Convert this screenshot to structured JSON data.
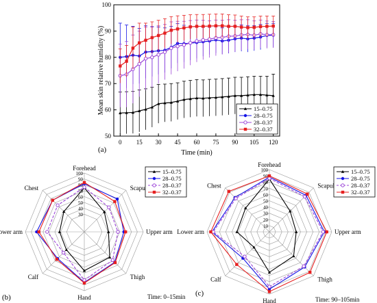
{
  "chart_data": [
    {
      "type": "line",
      "panel_label": "(a)",
      "xlabel": "Time (min)",
      "ylabel": "Mean skin relative humidity (%)",
      "xlim": [
        -5,
        125
      ],
      "ylim": [
        50,
        100
      ],
      "x_ticks": [
        0,
        15,
        30,
        45,
        60,
        75,
        90,
        105,
        120
      ],
      "y_ticks": [
        50,
        60,
        70,
        80,
        90,
        100
      ],
      "legend_position": "bottom-right",
      "grid": false,
      "x": [
        0,
        5,
        10,
        15,
        20,
        25,
        30,
        35,
        40,
        45,
        50,
        55,
        60,
        65,
        70,
        75,
        80,
        85,
        90,
        95,
        100,
        105,
        110,
        115,
        120
      ],
      "series": [
        {
          "name": "15–0.75",
          "color": "#000000",
          "marker": "triangle",
          "values": [
            58.8,
            58.9,
            59.0,
            59.6,
            60.2,
            61.0,
            62.3,
            62.6,
            62.8,
            63.3,
            63.9,
            64.2,
            64.5,
            64.4,
            64.6,
            64.7,
            64.9,
            65.1,
            65.4,
            65.4,
            65.6,
            65.8,
            65.8,
            65.6,
            65.4
          ],
          "errors": [
            8.0,
            8.0,
            8.0,
            8.0,
            7.8,
            7.6,
            7.4,
            7.2,
            7.2,
            7.0,
            7.0,
            7.0,
            7.0,
            7.0,
            7.0,
            7.0,
            7.0,
            7.0,
            7.0,
            7.0,
            7.0,
            7.0,
            7.0,
            7.2,
            8.2
          ]
        },
        {
          "name": "28–0.75",
          "color": "#1414e6",
          "marker": "circle",
          "values": [
            80.0,
            80.3,
            80.8,
            80.5,
            82.0,
            82.2,
            82.5,
            82.7,
            83.8,
            85.3,
            85.2,
            85.4,
            85.6,
            85.9,
            86.2,
            86.6,
            86.2,
            86.5,
            87.0,
            87.3,
            87.0,
            87.3,
            87.7,
            88.3,
            88.4
          ],
          "errors": [
            13.0,
            12.0,
            11.0,
            10.5,
            10.0,
            9.5,
            9.0,
            8.5,
            8.0,
            7.5,
            7.0,
            6.5,
            6.0,
            5.5,
            5.2,
            5.0,
            5.0,
            5.0,
            5.0,
            5.0,
            5.0,
            4.8,
            4.8,
            4.6,
            4.5
          ]
        },
        {
          "name": "28–0.37",
          "color": "#9c46d8",
          "marker": "circle-open",
          "values": [
            73.0,
            73.5,
            75.5,
            77.5,
            79.5,
            80.0,
            81.0,
            82.0,
            83.5,
            84.2,
            84.7,
            85.5,
            86.2,
            86.6,
            86.9,
            87.4,
            87.6,
            88.0,
            88.1,
            88.5,
            88.7,
            88.4,
            88.9,
            88.6,
            88.6
          ],
          "errors": [
            12.0,
            12.5,
            13.0,
            12.5,
            12.0,
            11.5,
            11.0,
            10.5,
            10.0,
            9.5,
            9.0,
            8.5,
            8.0,
            7.5,
            7.0,
            6.8,
            6.5,
            6.3,
            6.0,
            5.8,
            5.6,
            5.5,
            5.3,
            5.2,
            5.0
          ]
        },
        {
          "name": "32–0.37",
          "color": "#e62020",
          "marker": "square",
          "values": [
            76.7,
            78.5,
            83.5,
            85.5,
            86.5,
            87.5,
            88.3,
            89.2,
            90.3,
            90.8,
            91.2,
            91.6,
            91.8,
            91.8,
            91.9,
            92.0,
            92.0,
            91.8,
            91.8,
            91.5,
            91.3,
            91.4,
            91.7,
            91.8,
            91.9
          ],
          "errors": [
            6.5,
            6.0,
            8.0,
            7.5,
            6.5,
            6.0,
            5.8,
            5.5,
            5.2,
            5.0,
            4.8,
            4.6,
            4.5,
            4.5,
            4.5,
            4.5,
            4.5,
            4.4,
            4.3,
            4.2,
            4.1,
            4.0,
            4.0,
            3.9,
            3.8
          ]
        }
      ]
    },
    {
      "type": "radar",
      "panel_label": "(b)",
      "annotation": "Time: 0–15min",
      "axes": [
        "Forehead",
        "Scapular",
        "Upper arm",
        "Thigh",
        "Hand",
        "Calf",
        "Lower arm",
        "Chest"
      ],
      "r_range": [
        0,
        100
      ],
      "r_ticks": [
        30,
        40,
        50,
        60,
        70,
        80,
        90,
        100
      ],
      "legend_position": "top-right",
      "series": [
        {
          "name": "15–0.75",
          "color": "#000000",
          "marker": "triangle",
          "dash": false,
          "values": [
            75,
            48,
            41,
            61,
            66,
            43,
            42,
            49
          ]
        },
        {
          "name": "28–0.75",
          "color": "#1414e6",
          "marker": "circle",
          "dash": false,
          "values": [
            82,
            79,
            67,
            73,
            86,
            64,
            81,
            76
          ]
        },
        {
          "name": "28–0.37",
          "color": "#9c46d8",
          "marker": "circle-open",
          "dash": true,
          "values": [
            76,
            59,
            57,
            68,
            82,
            50,
            63,
            64
          ]
        },
        {
          "name": "32–0.37",
          "color": "#e62020",
          "marker": "square",
          "dash": false,
          "values": [
            84,
            73,
            70,
            74,
            87,
            66,
            77,
            76
          ]
        }
      ]
    },
    {
      "type": "radar",
      "panel_label": "(c)",
      "annotation": "Time: 90–105min",
      "axes": [
        "Forehead",
        "Scapular",
        "Upper arm",
        "Thigh",
        "Hand",
        "Calf",
        "Lower arm",
        "Chest"
      ],
      "r_range": [
        0,
        100
      ],
      "r_ticks": [
        10,
        20,
        30,
        40,
        50,
        60,
        70,
        80,
        90,
        100
      ],
      "legend_position": "top-right",
      "series": [
        {
          "name": "15–0.75",
          "color": "#000000",
          "marker": "triangle",
          "dash": false,
          "values": [
            85,
            47,
            43,
            55,
            65,
            35,
            52,
            54
          ]
        },
        {
          "name": "28–0.75",
          "color": "#1414e6",
          "marker": "circle",
          "dash": false,
          "values": [
            88,
            83,
            88,
            80,
            92,
            60,
            92,
            78
          ]
        },
        {
          "name": "28–0.37",
          "color": "#9c46d8",
          "marker": "circle-open",
          "dash": true,
          "values": [
            86,
            80,
            86,
            78,
            88,
            56,
            90,
            76
          ]
        },
        {
          "name": "32–0.37",
          "color": "#e62020",
          "marker": "square",
          "dash": false,
          "values": [
            90,
            86,
            92,
            92,
            96,
            74,
            94,
            92
          ]
        }
      ]
    }
  ]
}
